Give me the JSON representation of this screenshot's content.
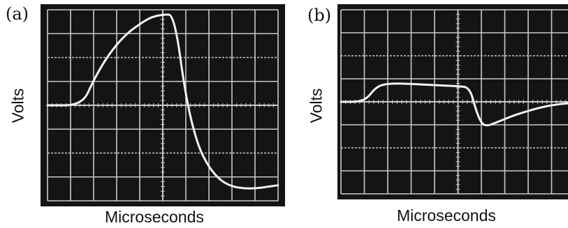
{
  "chart_data": [
    {
      "panel_label": "(a)",
      "type": "line",
      "xlabel": "Microseconds",
      "ylabel": "Volts",
      "title": "",
      "grid": true,
      "colors": {
        "screen": "#141414",
        "grid": "#c9c9c9",
        "trace": "#f2f2f2"
      },
      "xlim": [
        0,
        10
      ],
      "ylim": [
        -4,
        4
      ],
      "series": [
        {
          "x": [
            0,
            1.5,
            2,
            2.5,
            3,
            3.5,
            4,
            4.5,
            5,
            5.5,
            6,
            6.5,
            7,
            7.5,
            8,
            8.5,
            9,
            9.5,
            10
          ],
          "y": [
            0,
            0,
            1.05,
            1.9,
            2.55,
            3.05,
            3.4,
            3.7,
            3.8,
            3.8,
            0.3,
            -1.65,
            -2.6,
            -3.15,
            -3.4,
            -3.48,
            -3.48,
            -3.42,
            -3.35
          ]
        }
      ]
    },
    {
      "panel_label": "(b)",
      "type": "line",
      "xlabel": "Microseconds",
      "ylabel": "Volts",
      "title": "",
      "grid": true,
      "colors": {
        "screen": "#141414",
        "grid": "#c9c9c9",
        "trace": "#f2f2f2"
      },
      "xlim": [
        0,
        10
      ],
      "ylim": [
        -4,
        4
      ],
      "series": [
        {
          "x": [
            0,
            1,
            1.5,
            2,
            3,
            4,
            5,
            5.5,
            5.75,
            6,
            6.25,
            6.5,
            7,
            7.5,
            8,
            8.5,
            9,
            9.5,
            10
          ],
          "y": [
            0,
            0,
            0.65,
            0.8,
            0.78,
            0.72,
            0.68,
            0.62,
            -0.3,
            -0.95,
            -1.05,
            -0.95,
            -0.75,
            -0.55,
            -0.4,
            -0.25,
            -0.15,
            -0.08,
            -0.05
          ]
        }
      ]
    }
  ]
}
